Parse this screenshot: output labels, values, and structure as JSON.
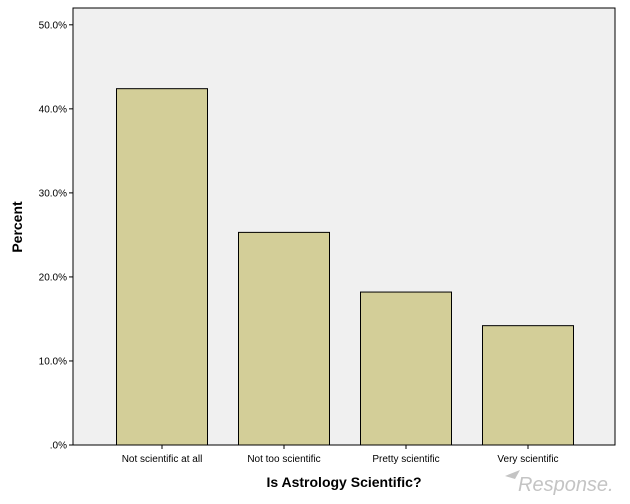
{
  "chart_data": {
    "type": "bar",
    "title": "",
    "xlabel": "Is Astrology Scientific?",
    "ylabel": "Percent",
    "categories": [
      "Not scientific at all",
      "Not too scientific",
      "Pretty scientific",
      "Very scientific"
    ],
    "values": [
      42.4,
      25.3,
      18.2,
      14.2
    ],
    "ylim": [
      0,
      52
    ],
    "yticks": [
      0,
      10,
      20,
      30,
      40,
      50
    ],
    "ytick_labels": [
      ".0%",
      "10.0%",
      "20.0%",
      "30.0%",
      "40.0%",
      "50.0%"
    ],
    "grid": false,
    "legend": "none"
  },
  "colors": {
    "plot_background": "#f0f0f0",
    "bar_fill": "#d3ce98",
    "bar_stroke": "#000000",
    "axis": "#000000"
  },
  "watermark": {
    "text": "Response."
  }
}
